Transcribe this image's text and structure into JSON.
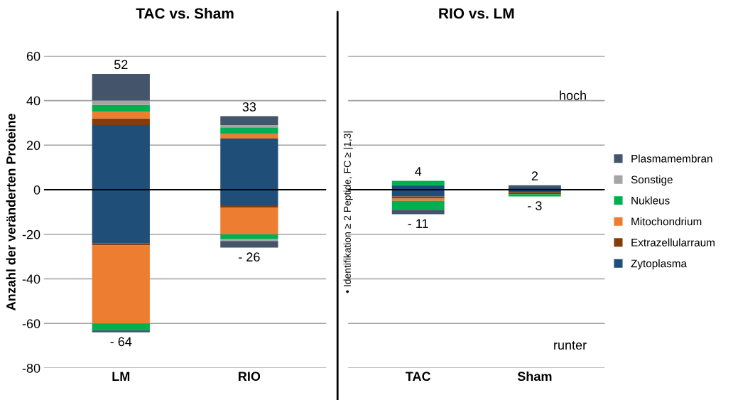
{
  "chart_data": [
    {
      "type": "bar",
      "title": "TAC vs. Sham",
      "ylabel": "Anzahl der veränderten Proteine",
      "categories": [
        "LM",
        "RIO"
      ],
      "stacked": true,
      "ylim": [
        -80,
        60
      ],
      "yticks": [
        -80,
        -60,
        -40,
        -20,
        0,
        20,
        40,
        60
      ],
      "grid": "y",
      "series": [
        {
          "color": "#1f4e79",
          "values": [
            29,
            23
          ]
        },
        {
          "color": "#843c0c",
          "values": [
            3,
            0
          ]
        },
        {
          "color": "#ed7d31",
          "values": [
            3,
            2
          ]
        },
        {
          "color": "#00b050",
          "values": [
            3,
            3
          ]
        },
        {
          "color": "#a5a5a5",
          "values": [
            2,
            1
          ]
        },
        {
          "color": "#44546a",
          "values": [
            12,
            4
          ]
        },
        {
          "color": "#1f4e79",
          "values": [
            -24,
            -7
          ]
        },
        {
          "color": "#843c0c",
          "values": [
            -1,
            -1
          ]
        },
        {
          "color": "#ed7d31",
          "values": [
            -35,
            -12
          ]
        },
        {
          "color": "#00b050",
          "values": [
            -3,
            -2
          ]
        },
        {
          "color": "#a5a5a5",
          "values": [
            0,
            -1
          ]
        },
        {
          "color": "#44546a",
          "values": [
            -1,
            -3
          ]
        }
      ],
      "annotations": [
        {
          "text": "52",
          "x": "LM",
          "y": 52
        },
        {
          "text": "33",
          "x": "RIO",
          "y": 33
        },
        {
          "text": "- 64",
          "x": "LM",
          "y": -64
        },
        {
          "text": "- 26",
          "x": "RIO",
          "y": -26
        }
      ],
      "ref_lines": [
        {
          "axis": "y",
          "value": 0,
          "color": "#000000"
        }
      ]
    },
    {
      "type": "bar",
      "title": "RIO vs. LM",
      "categories": [
        "TAC",
        "Sham"
      ],
      "stacked": true,
      "ylim": [
        -80,
        60
      ],
      "yticks": [
        -80,
        -60,
        -40,
        -20,
        0,
        20,
        40,
        60
      ],
      "grid": "y",
      "tick_labels": "x",
      "legend": "right",
      "series": [
        {
          "name": "Zytoplasma",
          "color": "#1f4e79",
          "values": [
            2,
            1
          ]
        },
        {
          "name": "Extrazellularraum",
          "color": "#843c0c",
          "values": [
            0,
            0
          ]
        },
        {
          "name": "Mitochondrium",
          "color": "#ed7d31",
          "values": [
            0,
            0
          ]
        },
        {
          "name": "Nukleus",
          "color": "#00b050",
          "values": [
            2,
            0
          ]
        },
        {
          "name": "Sonstige",
          "color": "#a5a5a5",
          "values": [
            0,
            0
          ]
        },
        {
          "name": "Plasmamembran",
          "color": "#44546a",
          "values": [
            0,
            1
          ]
        },
        {
          "color": "#1f4e79",
          "values": [
            -3,
            -1
          ]
        },
        {
          "color": "#843c0c",
          "values": [
            -1,
            -1
          ]
        },
        {
          "color": "#ed7d31",
          "values": [
            -1,
            0
          ]
        },
        {
          "color": "#00b050",
          "values": [
            -4,
            -1
          ]
        },
        {
          "color": "#a5a5a5",
          "values": [
            0,
            0
          ]
        },
        {
          "color": "#44546a",
          "values": [
            -2,
            0
          ]
        }
      ],
      "annotations": [
        {
          "text": "4",
          "x": "TAC",
          "y": 4
        },
        {
          "text": "2",
          "x": "Sham",
          "y": 2
        },
        {
          "text": "- 11",
          "x": "TAC",
          "y": -11
        },
        {
          "text": "- 3",
          "x": "Sham",
          "y": -3
        },
        "hoch",
        "runter",
        "• Identifikation ≥ 2 Peptide, FC ≥ |1,3|"
      ],
      "ref_lines": [
        {
          "axis": "y",
          "value": 0,
          "color": "#000000"
        }
      ]
    }
  ]
}
